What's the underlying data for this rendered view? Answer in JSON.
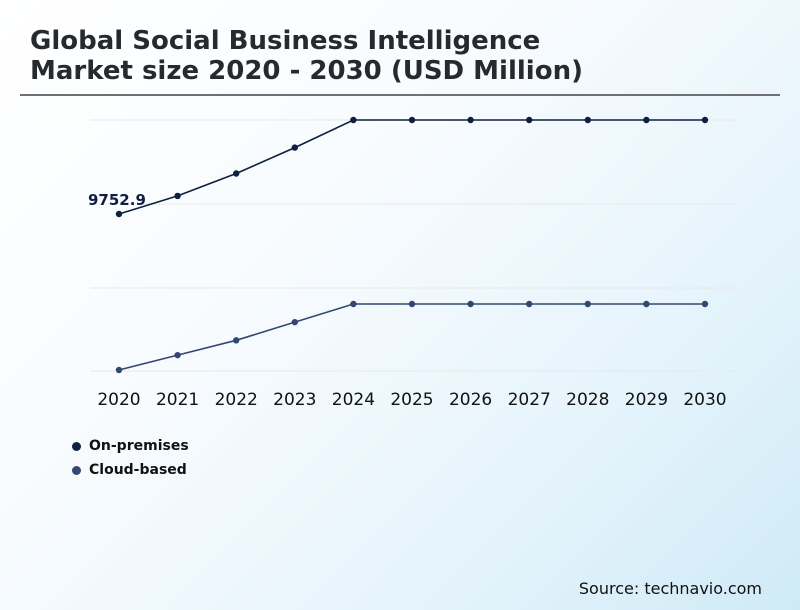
{
  "title_lines": [
    "Global Social Business Intelligence",
    "Market size 2020 - 2030 (USD Million)"
  ],
  "source": "Source: technavio.com",
  "colors": {
    "on_premises": "#0e1f3f",
    "cloud_based": "#334770",
    "grid": "#e6e9ec"
  },
  "chart_data": {
    "type": "line",
    "title": "Global Social Business Intelligence Market size 2020 - 2030 (USD Million)",
    "x": [
      "2020",
      "2021",
      "2022",
      "2023",
      "2024",
      "2025",
      "2026",
      "2027",
      "2028",
      "2029",
      "2030"
    ],
    "series": [
      {
        "name": "On-premises",
        "values": [
          9752.9,
          10800,
          12100,
          13600,
          15200,
          15200,
          15200,
          15200,
          15200,
          15200,
          15200
        ]
      },
      {
        "name": "Cloud-based",
        "values": [
          600,
          1500,
          2400,
          3500,
          4600,
          4600,
          4600,
          4600,
          4600,
          4600,
          4600
        ]
      }
    ],
    "annotations": [
      {
        "series": 0,
        "index": 0,
        "label": "9752.9"
      }
    ],
    "ylim": [
      0,
      15200
    ],
    "grid": true,
    "legend": "bottom-left",
    "xlabel": "",
    "ylabel": ""
  }
}
